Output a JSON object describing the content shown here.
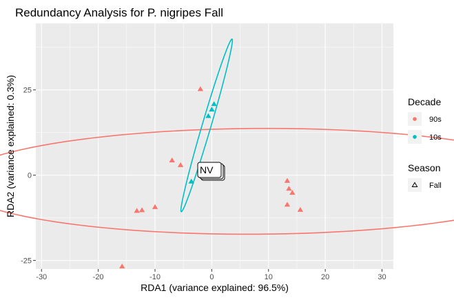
{
  "chart_data": {
    "type": "scatter",
    "title": "Redundancy Analysis for P. nigripes Fall",
    "xlabel": "RDA1 (variance explained: 96.5%)",
    "ylabel": "RDA2 (variance explained: 0.3%)",
    "xlim": [
      -31,
      32
    ],
    "ylim": [
      -27.5,
      44.5
    ],
    "x_ticks": [
      -30,
      -20,
      -10,
      0,
      10,
      20,
      30
    ],
    "y_ticks": [
      -25,
      0,
      25
    ],
    "x_tick_labels": [
      "-30",
      "-20",
      "-10",
      "0",
      "10",
      "20",
      "30"
    ],
    "y_tick_labels": [
      "-25",
      "0",
      "25"
    ],
    "grid": true,
    "panel_background": "#EBEBEB",
    "grid_color": "#FFFFFF",
    "series": [
      {
        "name": "90s",
        "color": "#F8766D",
        "shape": "triangle",
        "points": [
          [
            -2.0,
            25.2
          ],
          [
            -7.0,
            4.3
          ],
          [
            -5.5,
            2.9
          ],
          [
            -10.0,
            -9.4
          ],
          [
            -12.3,
            -10.3
          ],
          [
            -13.2,
            -10.5
          ],
          [
            -15.8,
            -26.8
          ],
          [
            13.3,
            -1.7
          ],
          [
            13.6,
            -4.0
          ],
          [
            14.2,
            -5.2
          ],
          [
            13.3,
            -8.7
          ],
          [
            15.6,
            -10.2
          ]
        ],
        "ellipse": {
          "cx": 8.0,
          "cy": -1.8,
          "rx": 53.2,
          "ry": 15.5,
          "angle_deg": 0.6
        }
      },
      {
        "name": "10s",
        "color": "#00BFC4",
        "shape": "triangle",
        "points": [
          [
            0.4,
            20.8
          ],
          [
            0.0,
            19.2
          ],
          [
            -0.6,
            17.3
          ],
          [
            -3.6,
            -1.9
          ]
        ],
        "ellipse": {
          "cx": -0.9,
          "cy": 14.6,
          "rx": 25.7,
          "ry": 0.8,
          "angle_deg": 80.0
        }
      }
    ],
    "annotation": {
      "text": "NV",
      "x": 0.2,
      "y": 0.1
    },
    "legends": [
      {
        "title": "Decade",
        "placement": "right",
        "items": [
          {
            "label": "90s",
            "color": "#F8766D",
            "shape": "circle"
          },
          {
            "label": "10s",
            "color": "#00BFC4",
            "shape": "circle"
          }
        ]
      },
      {
        "title": "Season",
        "placement": "right",
        "items": [
          {
            "label": "Fall",
            "color": "#000000",
            "shape": "triangle-open"
          }
        ]
      }
    ]
  }
}
